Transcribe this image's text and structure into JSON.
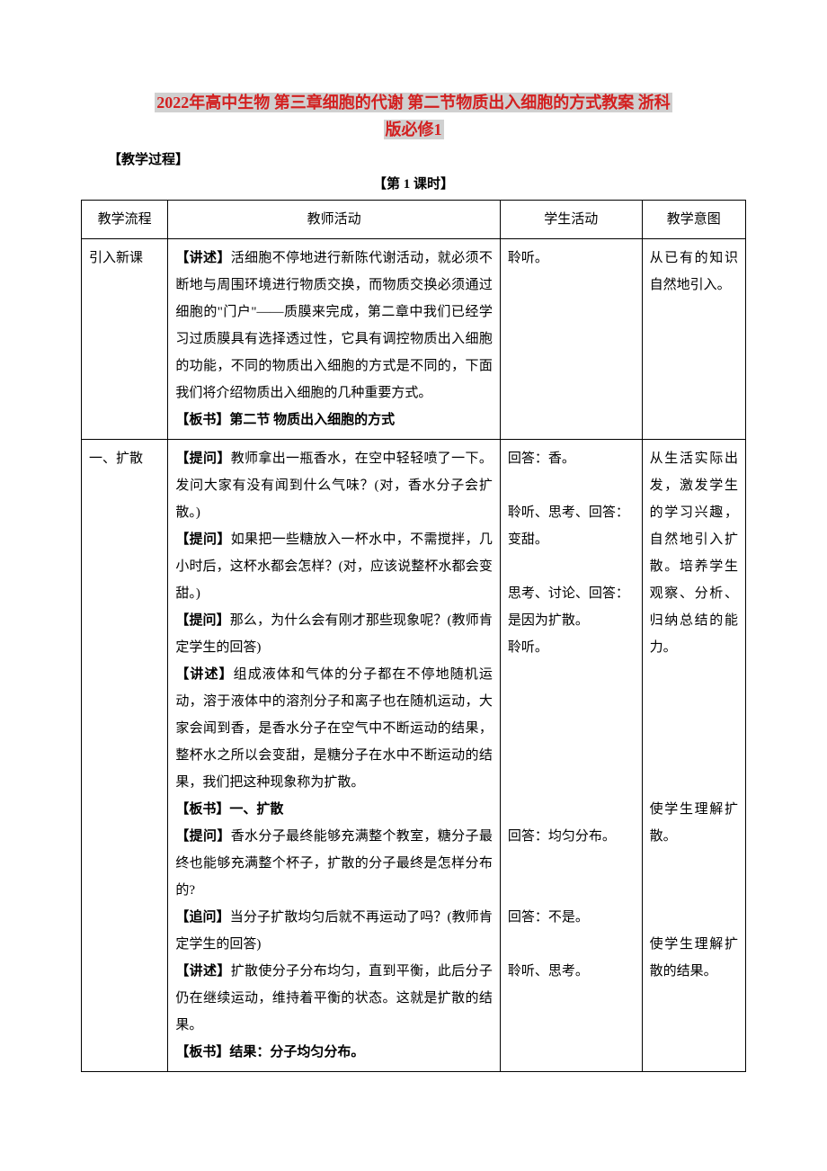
{
  "title": {
    "line1": "2022年高中生物 第三章细胞的代谢 第二节物质出入细胞的方式教案 浙科",
    "line2": "版必修1"
  },
  "section_header": "【教学过程】",
  "period_header": "【第 1 课时】",
  "table": {
    "headers": [
      "教学流程",
      "教师活动",
      "学生活动",
      "教学意图"
    ],
    "rows": [
      {
        "flow": "引入新课",
        "teacher_parts": [
          {
            "type": "plain",
            "bold_prefix": "【讲述】",
            "text": "活细胞不停地进行新陈代谢活动，就必须不断地与周围环境进行物质交换，而物质交换必须通过细胞的\"门户\"——质膜来完成，第二章中我们已经学习过质膜具有选择透过性，它具有调控物质出入细胞的功能，不同的物质出入细胞的方式是不同的，下面我们将介绍物质出入细胞的几种重要方式。"
          },
          {
            "type": "bold",
            "text": "【板书】第二节  物质出入细胞的方式"
          }
        ],
        "student": "聆听。",
        "intent": "从已有的知识自然地引入。"
      },
      {
        "flow": "一、扩散",
        "teacher_parts": [
          {
            "type": "plain",
            "bold_prefix": "【提问】",
            "text": "教师拿出一瓶香水，在空中轻轻喷了一下。发问大家有没有闻到什么气味？(对，香水分子会扩散。)"
          },
          {
            "type": "plain",
            "bold_prefix": "【提问】",
            "text": "如果把一些糖放入一杯水中，不需搅拌，几小时后，这杯水都会怎样？(对，应该说整杯水都会变甜。)"
          },
          {
            "type": "plain",
            "bold_prefix": "【提问】",
            "text": "那么，为什么会有刚才那些现象呢？(教师肯定学生的回答)"
          },
          {
            "type": "plain",
            "bold_prefix": "【讲述】",
            "text": "组成液体和气体的分子都在不停地随机运动，溶于液体中的溶剂分子和离子也在随机运动，大家会闻到香，是香水分子在空气中不断运动的结果，整杯水之所以会变甜，是糖分子在水中不断运动的结果，我们把这种现象称为扩散。"
          },
          {
            "type": "bold",
            "text": "【板书】一、扩散"
          },
          {
            "type": "plain",
            "bold_prefix": "【提问】",
            "text": "香水分子最终能够充满整个教室，糖分子最终也能够充满整个杯子，扩散的分子最终是怎样分布的?"
          },
          {
            "type": "plain",
            "bold_prefix": "【追问】",
            "text": "当分子扩散均匀后就不再运动了吗？(教师肯定学生的回答)"
          },
          {
            "type": "plain",
            "bold_prefix": "【讲述】",
            "text": "扩散使分子分布均匀，直到平衡，此后分子仍在继续运动，维持着平衡的状态。这就是扩散的结果。"
          },
          {
            "type": "bold",
            "text": "【板书】结果：分子均匀分布。"
          }
        ],
        "student_parts": [
          "",
          "回答：香。",
          "",
          "聆听、思考、回答：变甜。",
          "",
          "思考、讨论、回答：是因为扩散。",
          "聆听。",
          "",
          "",
          "",
          "",
          "",
          "",
          "回答：均匀分布。",
          "",
          "",
          "回答：不是。",
          "",
          "聆听、思考。"
        ],
        "intent_parts": [
          "从生活实际出发，激发学生的学习兴趣，自然地引入扩散。培养学生观察、分析、归纳总结的能力。",
          "",
          "",
          "",
          "",
          "",
          "",
          "",
          "",
          "",
          "",
          "",
          "",
          "",
          "使学生理解扩散。",
          "",
          "",
          "",
          "使学生理解扩散的结果。"
        ]
      }
    ]
  }
}
